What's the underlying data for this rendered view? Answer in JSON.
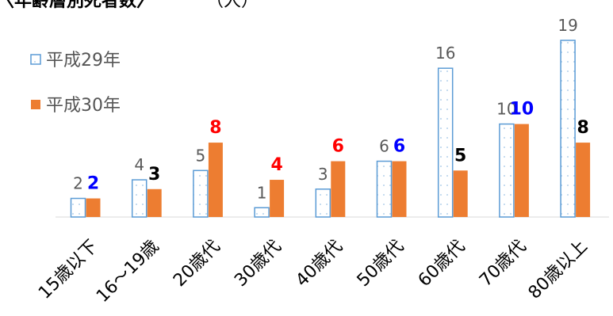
{
  "colors": {
    "prev_border": "#5B9BD5",
    "prev_dot": "#9DC3E6",
    "curr_fill": "#ED7D31",
    "axis": "#D9D9D9",
    "label_black": "#000000",
    "label_blue": "#0000FF",
    "label_red": "#FF0000"
  },
  "chart_data": {
    "type": "bar",
    "title": "〈年齢層別死者数〉",
    "unit": "（人）",
    "categories": [
      "15歳以下",
      "16～19歳",
      "20歳代",
      "30歳代",
      "40歳代",
      "50歳代",
      "60歳代",
      "70歳代",
      "80歳以上"
    ],
    "series": [
      {
        "name": "平成29年",
        "style": "dotted-outline",
        "values": [
          2,
          4,
          5,
          1,
          3,
          6,
          16,
          10,
          19
        ]
      },
      {
        "name": "平成30年",
        "style": "solid-orange",
        "values": [
          2,
          3,
          8,
          4,
          6,
          6,
          5,
          10,
          8
        ],
        "label_colors": [
          "blue",
          "black",
          "red",
          "red",
          "red",
          "blue",
          "black",
          "blue",
          "black"
        ]
      }
    ],
    "ylim": [
      0,
      19
    ],
    "grid": false,
    "legend_position": "top-left"
  }
}
